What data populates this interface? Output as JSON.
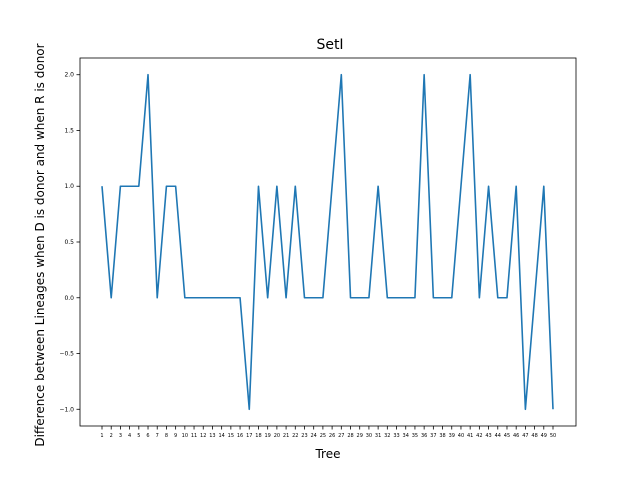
{
  "chart_data": {
    "type": "line",
    "title": "SetI",
    "xlabel": "Tree",
    "ylabel": "Difference between Lineages when D is donor and when R is donor",
    "categories": [
      "1",
      "2",
      "3",
      "4",
      "5",
      "6",
      "7",
      "8",
      "9",
      "10",
      "11",
      "12",
      "13",
      "14",
      "15",
      "16",
      "17",
      "18",
      "19",
      "20",
      "21",
      "22",
      "23",
      "24",
      "25",
      "26",
      "27",
      "28",
      "29",
      "30",
      "31",
      "32",
      "33",
      "34",
      "35",
      "36",
      "37",
      "38",
      "39",
      "40",
      "41",
      "42",
      "43",
      "44",
      "45",
      "46",
      "47",
      "48",
      "49",
      "50"
    ],
    "series": [
      {
        "color": "#1f77b4",
        "values": [
          1,
          0,
          1,
          1,
          1,
          2,
          0,
          1,
          1,
          0,
          0,
          0,
          0,
          0,
          0,
          0,
          -1,
          1,
          0,
          1,
          0,
          1,
          0,
          0,
          0,
          1,
          2,
          0,
          0,
          0,
          1,
          0,
          0,
          0,
          0,
          2,
          0,
          0,
          0,
          1,
          2,
          0,
          1,
          0,
          0,
          1,
          -1,
          0,
          1,
          -1
        ]
      }
    ],
    "yticks": [
      "−1.0",
      "−0.5",
      "0.0",
      "0.5",
      "1.0",
      "1.5",
      "2.0"
    ],
    "ytick_values": [
      -1.0,
      -0.5,
      0.0,
      0.5,
      1.0,
      1.5,
      2.0
    ],
    "ylim": [
      -1.15,
      2.15
    ],
    "grid": false
  }
}
